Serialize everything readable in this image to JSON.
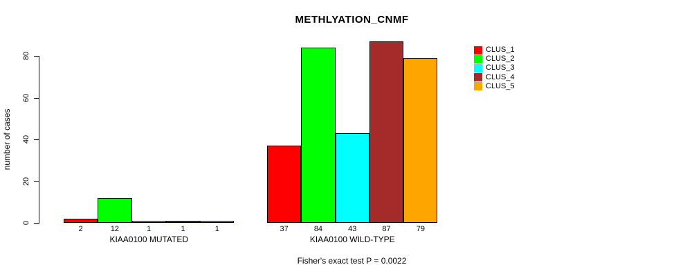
{
  "figure": {
    "title": "METHLYATION_CNMF",
    "ylabel": "number of cases",
    "footer": "Fisher's exact test P = 0.0022"
  },
  "legend": {
    "position": "right",
    "items": [
      {
        "label": "CLUS_1",
        "color": "#ff0000"
      },
      {
        "label": "CLUS_2",
        "color": "#00ff00"
      },
      {
        "label": "CLUS_3",
        "color": "#00ffff"
      },
      {
        "label": "CLUS_4",
        "color": "#a52a2a"
      },
      {
        "label": "CLUS_5",
        "color": "#ffa500"
      }
    ]
  },
  "colors": {
    "background": "#ffffff",
    "axis": "#000000",
    "text": "#000000",
    "bar_border": "#000000"
  },
  "chart_data": {
    "type": "bar",
    "title": "METHLYATION_CNMF",
    "xlabel": "",
    "ylabel": "number of cases",
    "ylim": [
      0,
      80
    ],
    "yticks": [
      0,
      20,
      40,
      60,
      80
    ],
    "grid": false,
    "legend_position": "right",
    "categories": [
      "KIAA0100 MUTATED",
      "KIAA0100 WILD-TYPE"
    ],
    "series": [
      {
        "name": "CLUS_1",
        "color": "#ff0000",
        "values": [
          2,
          37
        ]
      },
      {
        "name": "CLUS_2",
        "color": "#00ff00",
        "values": [
          12,
          84
        ]
      },
      {
        "name": "CLUS_3",
        "color": "#00ffff",
        "values": [
          1,
          43
        ]
      },
      {
        "name": "CLUS_4",
        "color": "#a52a2a",
        "values": [
          1,
          87
        ]
      },
      {
        "name": "CLUS_5",
        "color": "#ffa500",
        "values": [
          1,
          79
        ]
      }
    ],
    "bar_value_labels": {
      "KIAA0100 MUTATED": [
        2,
        12,
        1,
        1,
        1
      ],
      "KIAA0100 WILD-TYPE": [
        37,
        84,
        43,
        87,
        79
      ]
    },
    "annotation": "Fisher's exact test P = 0.0022"
  }
}
